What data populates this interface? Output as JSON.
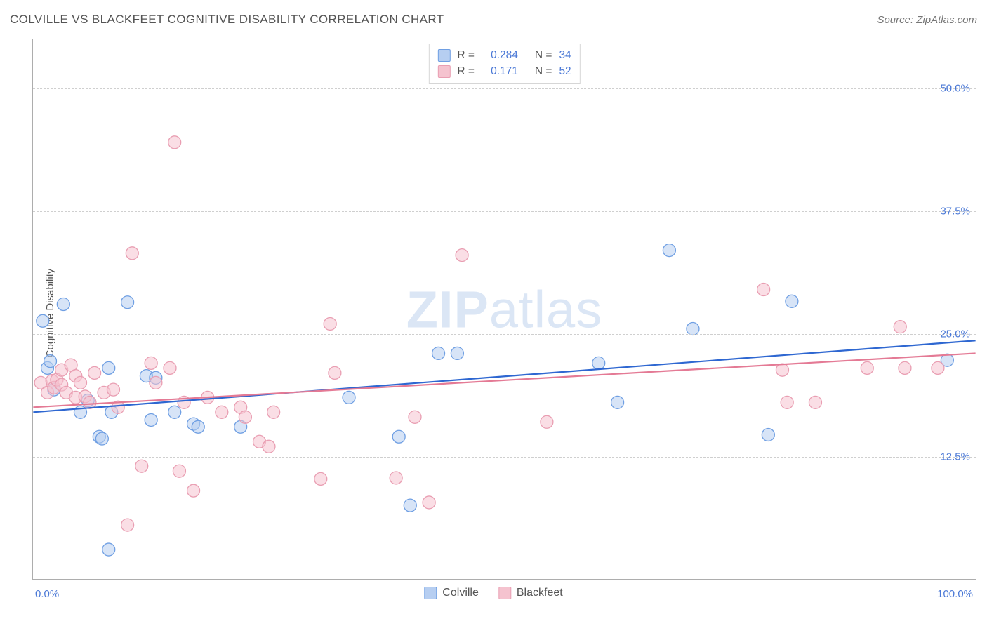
{
  "header": {
    "title": "COLVILLE VS BLACKFEET COGNITIVE DISABILITY CORRELATION CHART",
    "source": "Source: ZipAtlas.com"
  },
  "watermark": {
    "zip": "ZIP",
    "atlas": "atlas"
  },
  "chart": {
    "type": "scatter",
    "ylabel": "Cognitive Disability",
    "xlim": [
      0,
      100
    ],
    "ylim": [
      0,
      55
    ],
    "x_ticks": [
      0,
      50,
      100
    ],
    "x_tick_labels": [
      "0.0%",
      "",
      "100.0%"
    ],
    "y_gridlines": [
      12.5,
      25.0,
      37.5,
      50.0
    ],
    "y_tick_labels": [
      "12.5%",
      "25.0%",
      "37.5%",
      "50.0%"
    ],
    "grid_color": "#cfcfcf",
    "axis_color": "#666666",
    "background_color": "#ffffff",
    "tick_label_color": "#4a78d6",
    "marker_radius": 9,
    "marker_stroke_width": 1.3,
    "trend_stroke_width": 2.2,
    "series": [
      {
        "name": "Colville",
        "fill": "#b6cef1",
        "fill_opacity": 0.55,
        "stroke": "#6f9fe3",
        "R": "0.284",
        "N": "34",
        "trend": {
          "x1": 0,
          "y1": 17.0,
          "x2": 100,
          "y2": 24.3,
          "color": "#2e67d1"
        },
        "points": [
          [
            1.0,
            26.3
          ],
          [
            2.2,
            19.3
          ],
          [
            1.5,
            21.5
          ],
          [
            1.8,
            22.2
          ],
          [
            3.2,
            28.0
          ],
          [
            5.0,
            17.0
          ],
          [
            5.8,
            18.2
          ],
          [
            7.0,
            14.5
          ],
          [
            7.3,
            14.3
          ],
          [
            8.0,
            21.5
          ],
          [
            8.0,
            3.0
          ],
          [
            8.3,
            17.0
          ],
          [
            10.0,
            28.2
          ],
          [
            12.0,
            20.7
          ],
          [
            12.5,
            16.2
          ],
          [
            13.0,
            20.5
          ],
          [
            15.0,
            17.0
          ],
          [
            17.0,
            15.8
          ],
          [
            17.5,
            15.5
          ],
          [
            22.0,
            15.5
          ],
          [
            33.5,
            18.5
          ],
          [
            38.8,
            14.5
          ],
          [
            40.0,
            7.5
          ],
          [
            43.0,
            23.0
          ],
          [
            45.0,
            23.0
          ],
          [
            60.0,
            22.0
          ],
          [
            62.0,
            18.0
          ],
          [
            67.5,
            33.5
          ],
          [
            70.0,
            25.5
          ],
          [
            78.0,
            14.7
          ],
          [
            80.5,
            28.3
          ],
          [
            97.0,
            22.3
          ]
        ]
      },
      {
        "name": "Blackfeet",
        "fill": "#f5c3cf",
        "fill_opacity": 0.55,
        "stroke": "#e99eb2",
        "R": "0.171",
        "N": "52",
        "trend": {
          "x1": 0,
          "y1": 17.5,
          "x2": 100,
          "y2": 23.0,
          "color": "#e47a95"
        },
        "points": [
          [
            0.8,
            20.0
          ],
          [
            1.5,
            19.0
          ],
          [
            2.0,
            20.2
          ],
          [
            2.2,
            19.5
          ],
          [
            2.5,
            20.3
          ],
          [
            3.0,
            19.8
          ],
          [
            3.0,
            21.3
          ],
          [
            3.5,
            19.0
          ],
          [
            4.0,
            21.8
          ],
          [
            4.5,
            20.7
          ],
          [
            4.5,
            18.5
          ],
          [
            5.0,
            20.0
          ],
          [
            5.5,
            18.6
          ],
          [
            6.0,
            18.0
          ],
          [
            6.5,
            21.0
          ],
          [
            7.5,
            19.0
          ],
          [
            8.5,
            19.3
          ],
          [
            9.0,
            17.5
          ],
          [
            10.0,
            5.5
          ],
          [
            10.5,
            33.2
          ],
          [
            11.5,
            11.5
          ],
          [
            12.5,
            22.0
          ],
          [
            13.0,
            20.0
          ],
          [
            14.5,
            21.5
          ],
          [
            15.0,
            44.5
          ],
          [
            15.5,
            11.0
          ],
          [
            16.0,
            18.0
          ],
          [
            17.0,
            9.0
          ],
          [
            18.5,
            18.5
          ],
          [
            20.0,
            17.0
          ],
          [
            22.0,
            17.5
          ],
          [
            22.5,
            16.5
          ],
          [
            24.0,
            14.0
          ],
          [
            25.0,
            13.5
          ],
          [
            25.5,
            17.0
          ],
          [
            30.5,
            10.2
          ],
          [
            31.5,
            26.0
          ],
          [
            32.0,
            21.0
          ],
          [
            38.5,
            10.3
          ],
          [
            40.5,
            16.5
          ],
          [
            42.0,
            7.8
          ],
          [
            45.5,
            33.0
          ],
          [
            54.5,
            16.0
          ],
          [
            77.5,
            29.5
          ],
          [
            79.5,
            21.3
          ],
          [
            80.0,
            18.0
          ],
          [
            83.0,
            18.0
          ],
          [
            88.5,
            21.5
          ],
          [
            92.0,
            25.7
          ],
          [
            92.5,
            21.5
          ],
          [
            96.0,
            21.5
          ]
        ]
      }
    ]
  },
  "legend_bottom": {
    "items": [
      {
        "label": "Colville",
        "swatch": "blue"
      },
      {
        "label": "Blackfeet",
        "swatch": "pink"
      }
    ]
  },
  "legend_top": {
    "label_R": "R =",
    "label_N": "N ="
  }
}
